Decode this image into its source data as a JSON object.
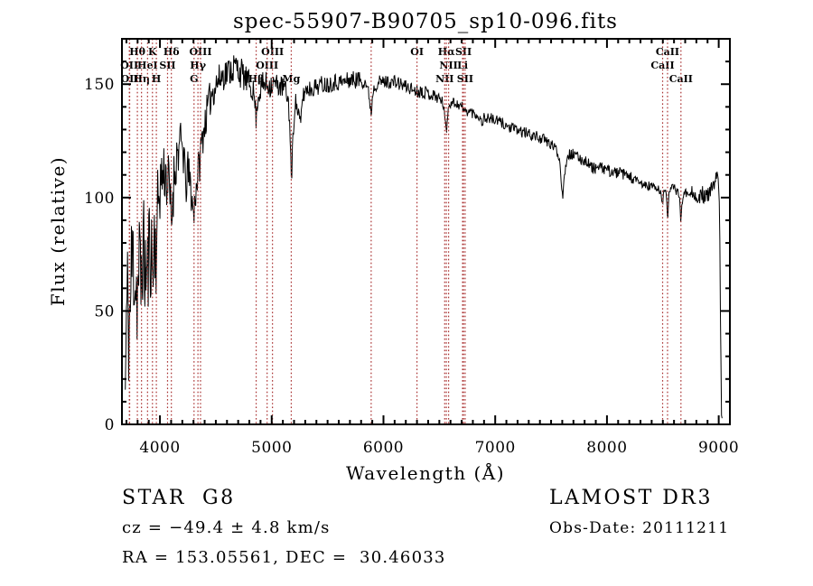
{
  "title": "spec-55907-B90705_sp10-096.fits",
  "chart_data": {
    "type": "line",
    "title": "spec-55907-B90705_sp10-096.fits",
    "xlabel": "Wavelength (Å)",
    "ylabel": "Flux (relative)",
    "xlim": [
      3660,
      9100
    ],
    "ylim": [
      0,
      170
    ],
    "x_ticks_major": [
      4000,
      5000,
      6000,
      7000,
      8000,
      9000
    ],
    "y_ticks_major": [
      0,
      50,
      100,
      150
    ],
    "x_minor_step": 100,
    "y_minor_step": 10,
    "grid": false,
    "line_color": "#000000",
    "marker_line_color": "#aa3333",
    "frame_color": "#000000",
    "background_color": "#ffffff",
    "noise_seed": 11,
    "sample_step": 5,
    "label_rows_y": {
      "1": 61,
      "2": 76,
      "3": 91
    },
    "spectral_lines": [
      {
        "wavelength": 3726,
        "label": "OII",
        "row": 2
      },
      {
        "wavelength": 3729,
        "label": "OII",
        "row": 3
      },
      {
        "wavelength": 3798,
        "label": "Hθ",
        "row": 1
      },
      {
        "wavelength": 3835,
        "label": "Hη",
        "row": 3
      },
      {
        "wavelength": 3889,
        "label": "HeI",
        "row": 2
      },
      {
        "wavelength": 3933,
        "label": "K",
        "row": 1
      },
      {
        "wavelength": 3968,
        "label": "H",
        "row": 3
      },
      {
        "wavelength": 4068,
        "label": "SII",
        "row": 2
      },
      {
        "wavelength": 4102,
        "label": "Hδ",
        "row": 1
      },
      {
        "wavelength": 4305,
        "label": "G",
        "row": 3
      },
      {
        "wavelength": 4340,
        "label": "Hγ",
        "row": 2
      },
      {
        "wavelength": 4363,
        "label": "OIII",
        "row": 1
      },
      {
        "wavelength": 4861,
        "label": "Hβ",
        "row": 3
      },
      {
        "wavelength": 4959,
        "label": "OIII",
        "row": 2
      },
      {
        "wavelength": 5007,
        "label": "OIII",
        "row": 1
      },
      {
        "wavelength": 5175,
        "label": "Mg",
        "row": 3
      },
      {
        "wavelength": 5890,
        "label": "",
        "row": 0
      },
      {
        "wavelength": 6300,
        "label": "OI",
        "row": 1
      },
      {
        "wavelength": 6548,
        "label": "NII",
        "row": 3
      },
      {
        "wavelength": 6563,
        "label": "Hα",
        "row": 1
      },
      {
        "wavelength": 6583,
        "label": "NII",
        "row": 2
      },
      {
        "wavelength": 6708,
        "label": "Li",
        "row": 2
      },
      {
        "wavelength": 6716,
        "label": "SII",
        "row": 1
      },
      {
        "wavelength": 6731,
        "label": "SII",
        "row": 3
      },
      {
        "wavelength": 8498,
        "label": "CaII",
        "row": 2
      },
      {
        "wavelength": 8542,
        "label": "CaII",
        "row": 1
      },
      {
        "wavelength": 8662,
        "label": "CaII",
        "row": 3
      }
    ],
    "spectrum_envelope": [
      [
        3690,
        15,
        12
      ],
      [
        3700,
        45,
        30
      ],
      [
        3712,
        55,
        33
      ],
      [
        3726,
        40,
        32
      ],
      [
        3740,
        60,
        34
      ],
      [
        3755,
        75,
        30
      ],
      [
        3770,
        72,
        30
      ],
      [
        3785,
        62,
        30
      ],
      [
        3800,
        57,
        28
      ],
      [
        3815,
        70,
        28
      ],
      [
        3830,
        63,
        28
      ],
      [
        3845,
        78,
        26
      ],
      [
        3860,
        72,
        26
      ],
      [
        3875,
        67,
        26
      ],
      [
        3890,
        65,
        26
      ],
      [
        3905,
        80,
        24
      ],
      [
        3920,
        78,
        24
      ],
      [
        3935,
        66,
        24
      ],
      [
        3952,
        84,
        22
      ],
      [
        3968,
        76,
        22
      ],
      [
        3985,
        100,
        19
      ],
      [
        4000,
        106,
        17
      ],
      [
        4020,
        110,
        16
      ],
      [
        4045,
        112,
        15
      ],
      [
        4070,
        106,
        16
      ],
      [
        4088,
        102,
        15
      ],
      [
        4102,
        86,
        14
      ],
      [
        4115,
        102,
        14
      ],
      [
        4135,
        114,
        13
      ],
      [
        4160,
        121,
        12
      ],
      [
        4190,
        123,
        11
      ],
      [
        4220,
        118,
        11
      ],
      [
        4227,
        100,
        10
      ],
      [
        4245,
        112,
        10
      ],
      [
        4268,
        107,
        10
      ],
      [
        4288,
        99,
        9
      ],
      [
        4302,
        91,
        8
      ],
      [
        4318,
        103,
        9
      ],
      [
        4338,
        110,
        9
      ],
      [
        4358,
        117,
        9
      ],
      [
        4380,
        127,
        9
      ],
      [
        4410,
        135,
        8
      ],
      [
        4440,
        142,
        8
      ],
      [
        4470,
        147,
        8
      ],
      [
        4500,
        150,
        8
      ],
      [
        4530,
        152,
        7
      ],
      [
        4560,
        154,
        7
      ],
      [
        4590,
        155,
        7
      ],
      [
        4620,
        156,
        7
      ],
      [
        4650,
        157,
        7
      ],
      [
        4680,
        158,
        7
      ],
      [
        4710,
        156,
        7
      ],
      [
        4740,
        154,
        7
      ],
      [
        4770,
        152,
        6
      ],
      [
        4800,
        150,
        6
      ],
      [
        4830,
        148,
        6
      ],
      [
        4850,
        142,
        5
      ],
      [
        4861,
        134,
        5
      ],
      [
        4875,
        144,
        5
      ],
      [
        4900,
        148,
        6
      ],
      [
        4930,
        150,
        6
      ],
      [
        4960,
        150,
        6
      ],
      [
        5000,
        150,
        6
      ],
      [
        5040,
        150,
        5
      ],
      [
        5080,
        149,
        5
      ],
      [
        5120,
        148,
        5
      ],
      [
        5150,
        142,
        4
      ],
      [
        5168,
        125,
        4
      ],
      [
        5177,
        103,
        3
      ],
      [
        5188,
        125,
        4
      ],
      [
        5210,
        143,
        4
      ],
      [
        5240,
        137,
        5
      ],
      [
        5258,
        131,
        4
      ],
      [
        5275,
        144,
        4
      ],
      [
        5310,
        148,
        4
      ],
      [
        5350,
        148,
        4
      ],
      [
        5400,
        149,
        4
      ],
      [
        5450,
        150,
        4
      ],
      [
        5500,
        150,
        4
      ],
      [
        5550,
        151,
        4
      ],
      [
        5600,
        151,
        4
      ],
      [
        5650,
        151,
        4
      ],
      [
        5700,
        152,
        4
      ],
      [
        5750,
        152,
        4
      ],
      [
        5800,
        152,
        4
      ],
      [
        5840,
        151,
        3
      ],
      [
        5872,
        145,
        3
      ],
      [
        5890,
        137,
        3
      ],
      [
        5908,
        148,
        3
      ],
      [
        5950,
        151,
        3
      ],
      [
        6000,
        151,
        3
      ],
      [
        6050,
        151,
        3
      ],
      [
        6100,
        151,
        3
      ],
      [
        6150,
        150,
        3
      ],
      [
        6200,
        149,
        3
      ],
      [
        6250,
        148,
        3
      ],
      [
        6300,
        147,
        3
      ],
      [
        6350,
        147,
        3
      ],
      [
        6400,
        146,
        3
      ],
      [
        6450,
        145,
        3
      ],
      [
        6500,
        144,
        2.5
      ],
      [
        6540,
        141,
        2.5
      ],
      [
        6556,
        132,
        2
      ],
      [
        6563,
        127,
        2
      ],
      [
        6572,
        136,
        2
      ],
      [
        6590,
        142,
        2.5
      ],
      [
        6630,
        142,
        2.5
      ],
      [
        6670,
        141,
        2.5
      ],
      [
        6705,
        140,
        2.5
      ],
      [
        6722,
        138,
        2
      ],
      [
        6740,
        138,
        2
      ],
      [
        6775,
        138,
        2.5
      ],
      [
        6815,
        137,
        2.5
      ],
      [
        6855,
        136,
        2.5
      ],
      [
        6878,
        133,
        2
      ],
      [
        6900,
        135,
        2.5
      ],
      [
        6950,
        135,
        2.5
      ],
      [
        7000,
        134,
        2.5
      ],
      [
        7060,
        133,
        2.5
      ],
      [
        7120,
        131,
        2.5
      ],
      [
        7180,
        130,
        2.5
      ],
      [
        7240,
        129,
        2.5
      ],
      [
        7300,
        128,
        2.5
      ],
      [
        7360,
        127,
        2.5
      ],
      [
        7420,
        126,
        2.5
      ],
      [
        7480,
        124,
        2.5
      ],
      [
        7540,
        122,
        2
      ],
      [
        7575,
        117,
        2
      ],
      [
        7592,
        107,
        2
      ],
      [
        7605,
        101,
        2
      ],
      [
        7622,
        111,
        2
      ],
      [
        7645,
        119,
        2.5
      ],
      [
        7700,
        119,
        2.5
      ],
      [
        7760,
        117,
        2.5
      ],
      [
        7820,
        116,
        2.5
      ],
      [
        7870,
        113,
        2.5
      ],
      [
        7910,
        113,
        2.5
      ],
      [
        7960,
        113,
        2.5
      ],
      [
        8010,
        112,
        2.5
      ],
      [
        8060,
        111,
        2.5
      ],
      [
        8110,
        111,
        2.5
      ],
      [
        8160,
        110,
        2.5
      ],
      [
        8210,
        109,
        2.5
      ],
      [
        8260,
        107,
        2.5
      ],
      [
        8310,
        106,
        2.5
      ],
      [
        8360,
        105,
        2.5
      ],
      [
        8410,
        105,
        2
      ],
      [
        8450,
        104,
        2
      ],
      [
        8480,
        102,
        1.8
      ],
      [
        8491,
        99,
        1.8
      ],
      [
        8498,
        97,
        1.5
      ],
      [
        8508,
        102,
        1.8
      ],
      [
        8525,
        104,
        1.8
      ],
      [
        8536,
        99,
        1.5
      ],
      [
        8542,
        89,
        1.5
      ],
      [
        8553,
        102,
        1.8
      ],
      [
        8570,
        104,
        2
      ],
      [
        8600,
        104,
        2.2
      ],
      [
        8630,
        103,
        2.2
      ],
      [
        8650,
        100,
        2
      ],
      [
        8662,
        89,
        1.5
      ],
      [
        8676,
        100,
        2
      ],
      [
        8700,
        102,
        2.5
      ],
      [
        8730,
        103,
        2.5
      ],
      [
        8760,
        103,
        2.5
      ],
      [
        8790,
        100,
        3
      ],
      [
        8820,
        98,
        3.5
      ],
      [
        8850,
        102,
        3.5
      ],
      [
        8880,
        100,
        3.5
      ],
      [
        8910,
        101,
        3.5
      ],
      [
        8940,
        104,
        3.5
      ],
      [
        8965,
        106,
        3.5
      ],
      [
        8982,
        111,
        3
      ],
      [
        8995,
        106,
        3
      ],
      [
        9005,
        99,
        3
      ],
      [
        9012,
        70,
        6
      ],
      [
        9018,
        30,
        8
      ],
      [
        9024,
        6,
        3
      ],
      [
        9030,
        3,
        2
      ]
    ]
  },
  "footer": {
    "object_class": "STAR",
    "subclass": "G8",
    "cz_line": "cz = −49.4 ± 4.8 km/s",
    "radec_line": "RA = 153.05561, DEC =  30.46033",
    "survey": "LAMOST DR3",
    "obsdate": "Obs-Date: 20111211"
  }
}
